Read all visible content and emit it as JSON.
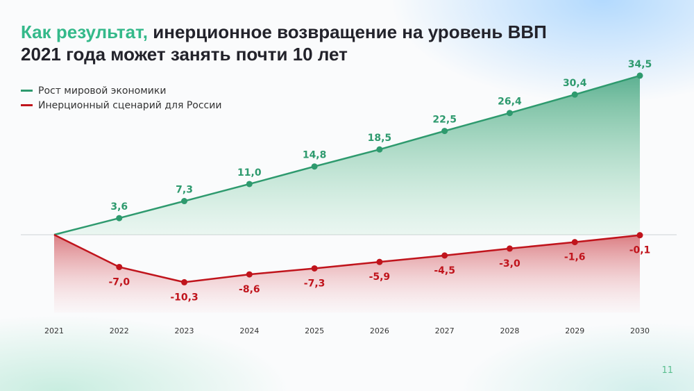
{
  "title": {
    "accent": "Как результат,",
    "line1_rest": " инерционное возвращение на уровень ВВП",
    "line2": "2021 года может занять почти 10 лет"
  },
  "page_number": "11",
  "chart_data": {
    "type": "area",
    "categories": [
      "2021",
      "2022",
      "2023",
      "2024",
      "2025",
      "2026",
      "2027",
      "2028",
      "2029",
      "2030"
    ],
    "series": [
      {
        "name": "Рост мировой экономики",
        "color": "#2e9a6e",
        "values": [
          0,
          3.6,
          7.3,
          11.0,
          14.8,
          18.5,
          22.5,
          26.4,
          30.4,
          34.5
        ],
        "labels": [
          "",
          "3,6",
          "7,3",
          "11,0",
          "14,8",
          "18,5",
          "22,5",
          "26,4",
          "30,4",
          "34,5"
        ]
      },
      {
        "name": "Инерционный сценарий для России",
        "color": "#c0141c",
        "values": [
          0,
          -7.0,
          -10.3,
          -8.6,
          -7.3,
          -5.9,
          -4.5,
          -3.0,
          -1.6,
          -0.1
        ],
        "labels": [
          "",
          "-7,0",
          "-10,3",
          "-8,6",
          "-7,3",
          "-5,9",
          "-4,5",
          "-3,0",
          "-1,6",
          "-0,1"
        ]
      }
    ],
    "legend": "top-left",
    "grid": false,
    "zero_line": true
  }
}
